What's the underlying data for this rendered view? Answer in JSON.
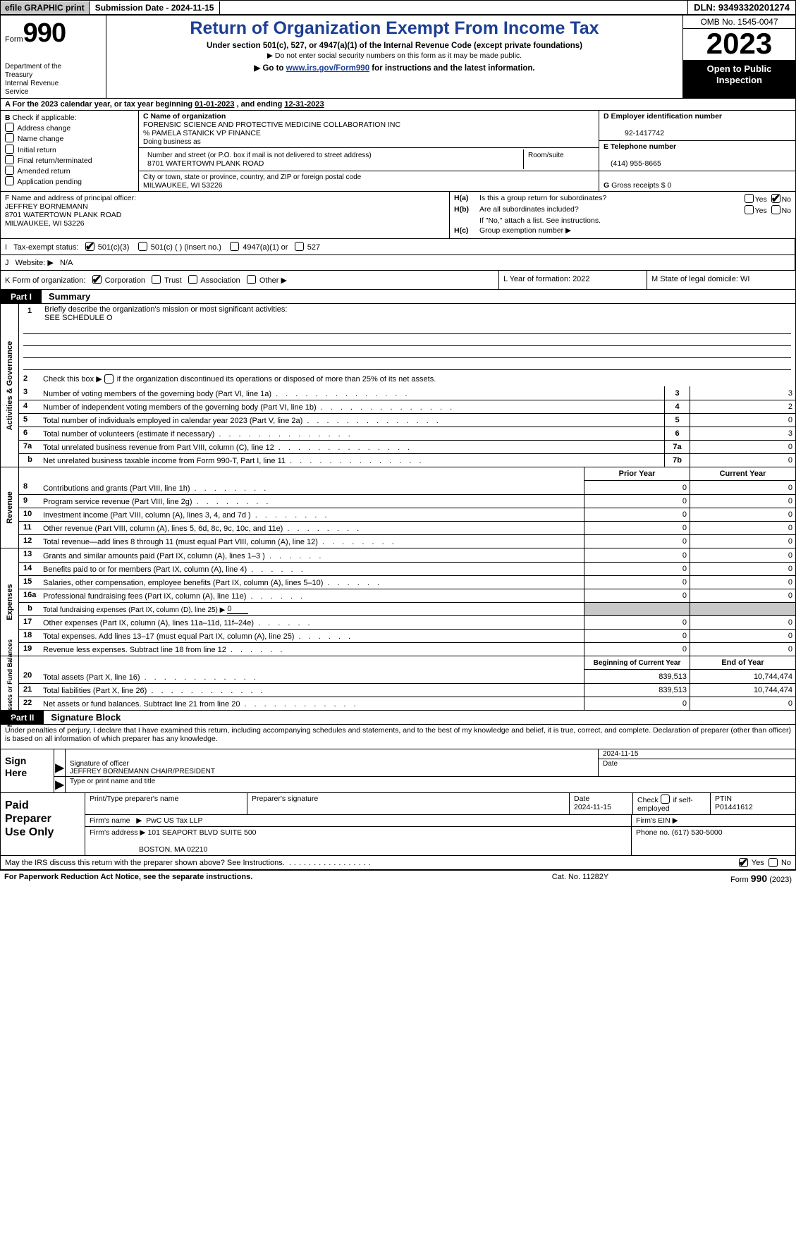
{
  "topbar": {
    "efile": "efile GRAPHIC print",
    "submission_label": "Submission Date - ",
    "submission_date": "2024-11-15",
    "dln_label": "DLN: ",
    "dln": "93493320201274"
  },
  "header": {
    "form_word": "Form",
    "form_num": "990",
    "dept": "Department of the Treasury\nInternal Revenue Service",
    "title": "Return of Organization Exempt From Income Tax",
    "sub1": "Under section 501(c), 527, or 4947(a)(1) of the Internal Revenue Code (except private foundations)",
    "sub2": "Do not enter social security numbers on this form as it may be made public.",
    "sub3_prefix": "Go to ",
    "sub3_link": "www.irs.gov/Form990",
    "sub3_suffix": " for instructions and the latest information.",
    "omb": "OMB No. 1545-0047",
    "year": "2023",
    "openpub": "Open to Public Inspection"
  },
  "rowA": {
    "text_prefix": "A For the 2023 calendar year, or tax year beginning ",
    "begin": "01-01-2023",
    "mid": "   , and ending ",
    "end": "12-31-2023"
  },
  "colB": {
    "title": "B",
    "intro": " Check if applicable:",
    "items": [
      "Address change",
      "Name change",
      "Initial return",
      "Final return/terminated",
      "Amended return",
      "Application pending"
    ]
  },
  "colC": {
    "name_lbl": "C Name of organization",
    "name1": "FORENSIC SCIENCE AND PROTECTIVE MEDICINE COLLABORATION INC",
    "name2": "% PAMELA STANICK VP FINANCE",
    "dba_lbl": "Doing business as",
    "addr_lbl": "Number and street (or P.O. box if mail is not delivered to street address)",
    "addr": "8701 WATERTOWN PLANK ROAD",
    "room_lbl": "Room/suite",
    "city_lbl": "City or town, state or province, country, and ZIP or foreign postal code",
    "city": "MILWAUKEE, WI   53226"
  },
  "colD": {
    "ein_lbl": "D Employer identification number",
    "ein": "92-1417742",
    "tel_lbl": "E Telephone number",
    "tel": "(414) 955-8665",
    "gross_lbl": "G",
    "gross_text": " Gross receipts $ ",
    "gross_val": "0"
  },
  "rowF": {
    "lbl": "F",
    "text": "  Name and address of principal officer:",
    "name": "JEFFREY BORNEMANN",
    "addr": "8701 WATERTOWN PLANK ROAD",
    "city": "MILWAUKEE, WI   53226"
  },
  "rowH": {
    "a": {
      "lbl": "H(a)",
      "text": "Is this a group return for subordinates?",
      "yes": "Yes",
      "no": "No",
      "checked": "no"
    },
    "b": {
      "lbl": "H(b)",
      "text": "Are all subordinates included?",
      "yes": "Yes",
      "no": "No",
      "note": "If \"No,\" attach a list. See instructions."
    },
    "c": {
      "lbl": "H(c)",
      "text": "Group exemption number ▶"
    }
  },
  "rowI": {
    "lbl": "I",
    "text": "Tax-exempt status:",
    "opts": [
      "501(c)(3)",
      "501(c) (  ) (insert no.)",
      "4947(a)(1) or",
      "527"
    ],
    "checked": 0
  },
  "rowJ": {
    "lbl": "J",
    "text": "Website: ▶",
    "val": "N/A"
  },
  "rowK": {
    "lbl": "K",
    "text": " Form of organization:",
    "opts": [
      "Corporation",
      "Trust",
      "Association",
      "Other ▶"
    ],
    "checked": 0,
    "l_lbl": "L",
    "l_text": " Year of formation: ",
    "l_val": "2022",
    "m_lbl": "M",
    "m_text": " State of legal domicile: ",
    "m_val": "WI"
  },
  "partI": {
    "tab": "Part I",
    "title": "Summary"
  },
  "summary": {
    "sections": [
      {
        "side": "Activities & Governance",
        "mission": {
          "num": "1",
          "text": "Briefly describe the organization's mission or most significant activities:",
          "val": "SEE SCHEDULE O"
        },
        "line2": {
          "num": "2",
          "text": "Check this box ▶",
          "suffix": " if the organization discontinued its operations or disposed of more than 25% of its net assets."
        },
        "rows": [
          {
            "num": "3",
            "desc": "Number of voting members of the governing body (Part VI, line 1a)",
            "box": "3",
            "val": "3"
          },
          {
            "num": "4",
            "desc": "Number of independent voting members of the governing body (Part VI, line 1b)",
            "box": "4",
            "val": "2"
          },
          {
            "num": "5",
            "desc": "Total number of individuals employed in calendar year 2023 (Part V, line 2a)",
            "box": "5",
            "val": "0"
          },
          {
            "num": "6",
            "desc": "Total number of volunteers (estimate if necessary)",
            "box": "6",
            "val": "3"
          },
          {
            "num": "7a",
            "desc": "Total unrelated business revenue from Part VIII, column (C), line 12",
            "box": "7a",
            "val": "0"
          },
          {
            "num": "",
            "desc": "Net unrelated business taxable income from Form 990-T, Part I, line 11",
            "box": "7b",
            "val": "0",
            "indent": "b"
          }
        ]
      },
      {
        "side": "Revenue",
        "header": {
          "prior": "Prior Year",
          "current": "Current Year"
        },
        "rows": [
          {
            "num": "8",
            "desc": "Contributions and grants (Part VIII, line 1h)",
            "prior": "0",
            "curr": "0"
          },
          {
            "num": "9",
            "desc": "Program service revenue (Part VIII, line 2g)",
            "prior": "0",
            "curr": "0"
          },
          {
            "num": "10",
            "desc": "Investment income (Part VIII, column (A), lines 3, 4, and 7d )",
            "prior": "0",
            "curr": "0"
          },
          {
            "num": "11",
            "desc": "Other revenue (Part VIII, column (A), lines 5, 6d, 8c, 9c, 10c, and 11e)",
            "prior": "0",
            "curr": "0"
          },
          {
            "num": "12",
            "desc": "Total revenue—add lines 8 through 11 (must equal Part VIII, column (A), line 12)",
            "prior": "0",
            "curr": "0"
          }
        ]
      },
      {
        "side": "Expenses",
        "rows": [
          {
            "num": "13",
            "desc": "Grants and similar amounts paid (Part IX, column (A), lines 1–3 )",
            "prior": "0",
            "curr": "0"
          },
          {
            "num": "14",
            "desc": "Benefits paid to or for members (Part IX, column (A), line 4)",
            "prior": "0",
            "curr": "0"
          },
          {
            "num": "15",
            "desc": "Salaries, other compensation, employee benefits (Part IX, column (A), lines 5–10)",
            "prior": "0",
            "curr": "0"
          },
          {
            "num": "16a",
            "desc": "Professional fundraising fees (Part IX, column (A), line 11e)",
            "prior": "0",
            "curr": "0"
          },
          {
            "num": "b",
            "desc": "Total fundraising expenses (Part IX, column (D), line 25) ▶",
            "under": "0",
            "grey": true
          },
          {
            "num": "17",
            "desc": "Other expenses (Part IX, column (A), lines 11a–11d, 11f–24e)",
            "prior": "0",
            "curr": "0"
          },
          {
            "num": "18",
            "desc": "Total expenses. Add lines 13–17 (must equal Part IX, column (A), line 25)",
            "prior": "0",
            "curr": "0"
          },
          {
            "num": "19",
            "desc": "Revenue less expenses. Subtract line 18 from line 12",
            "prior": "0",
            "curr": "0"
          }
        ]
      },
      {
        "side": "Net Assets or Fund Balances",
        "header": {
          "prior": "Beginning of Current Year",
          "current": "End of Year"
        },
        "rows": [
          {
            "num": "20",
            "desc": "Total assets (Part X, line 16)",
            "prior": "839,513",
            "curr": "10,744,474"
          },
          {
            "num": "21",
            "desc": "Total liabilities (Part X, line 26)",
            "prior": "839,513",
            "curr": "10,744,474"
          },
          {
            "num": "22",
            "desc": "Net assets or fund balances. Subtract line 21 from line 20",
            "prior": "0",
            "curr": "0"
          }
        ]
      }
    ]
  },
  "partII": {
    "tab": "Part II",
    "title": "Signature Block"
  },
  "perjury": "Under penalties of perjury, I declare that I have examined this return, including accompanying schedules and statements, and to the best of my knowledge and belief, it is true, correct, and complete. Declaration of preparer (other than officer) is based on all information of which preparer has any knowledge.",
  "sign": {
    "label": "Sign Here",
    "date": "2024-11-15",
    "sig_lbl": "Signature of officer",
    "officer": "JEFFREY BORNEMANN  CHAIR/PRESIDENT",
    "type_lbl": "Type or print name and title",
    "date_lbl": "Date"
  },
  "prep": {
    "label": "Paid Preparer Use Only",
    "r1": {
      "c1_lbl": "Print/Type preparer's name",
      "c2_lbl": "Preparer's signature",
      "c3_lbl": "Date",
      "c3_val": "2024-11-15",
      "c4_lbl": "Check",
      "c4_suffix": " if self-employed",
      "c5_lbl": "PTIN",
      "c5_val": "P01441612"
    },
    "r2": {
      "c1_lbl": "Firm's name",
      "c1_arrow": "▶",
      "c1_val": "PwC US Tax LLP",
      "c2_lbl": "Firm's EIN ▶"
    },
    "r3": {
      "c1_lbl": "Firm's address ▶",
      "c1_val1": "101 SEAPORT BLVD SUITE 500",
      "c1_val2": "BOSTON, MA  02210",
      "c2_lbl": "Phone no. ",
      "c2_val": "(617) 530-5000"
    }
  },
  "discuss": {
    "text": "May the IRS discuss this return with the preparer shown above? See Instructions.",
    "yes": "Yes",
    "no": "No",
    "checked": "yes"
  },
  "footer": {
    "left": "For Paperwork Reduction Act Notice, see the separate instructions.",
    "mid": "Cat. No. 11282Y",
    "right_form": "Form ",
    "right_num": "990",
    "right_year": " (2023)"
  }
}
